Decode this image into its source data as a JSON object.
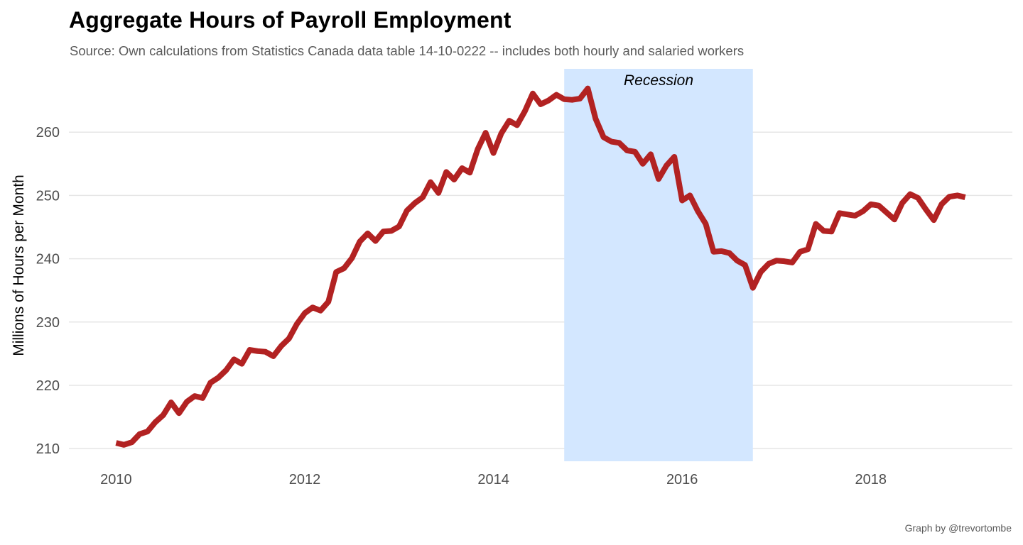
{
  "title": "Aggregate Hours of Payroll Employment",
  "subtitle": "Source: Own calculations from  Statistics Canada data table 14-10-0222 -- includes both hourly and salaried workers",
  "caption": "Graph by @trevortombe",
  "colors": {
    "line": "#b22222",
    "shade": "#d3e7ff",
    "grid": "#e6e6e6"
  },
  "chart_data": {
    "type": "line",
    "ylabel": "Millions of Hours per Month",
    "xlim": [
      2009.5,
      2019.5
    ],
    "ylim": [
      208,
      270
    ],
    "x_ticks": [
      2010,
      2012,
      2014,
      2016,
      2018
    ],
    "y_ticks": [
      210,
      220,
      230,
      240,
      250,
      260
    ],
    "grid": true,
    "shaded_regions": [
      {
        "label": "Recession",
        "start": 2014.75,
        "end": 2016.75
      }
    ],
    "series": [
      {
        "points": [
          [
            2010.0,
            210.9
          ],
          [
            2010.083,
            210.6
          ],
          [
            2010.167,
            211.0
          ],
          [
            2010.25,
            212.3
          ],
          [
            2010.333,
            212.7
          ],
          [
            2010.417,
            214.2
          ],
          [
            2010.5,
            215.3
          ],
          [
            2010.583,
            217.3
          ],
          [
            2010.667,
            215.6
          ],
          [
            2010.75,
            217.4
          ],
          [
            2010.833,
            218.3
          ],
          [
            2010.917,
            218.0
          ],
          [
            2011.0,
            220.4
          ],
          [
            2011.083,
            221.2
          ],
          [
            2011.167,
            222.4
          ],
          [
            2011.25,
            224.1
          ],
          [
            2011.333,
            223.4
          ],
          [
            2011.417,
            225.6
          ],
          [
            2011.5,
            225.4
          ],
          [
            2011.583,
            225.3
          ],
          [
            2011.667,
            224.6
          ],
          [
            2011.75,
            226.2
          ],
          [
            2011.833,
            227.4
          ],
          [
            2011.917,
            229.7
          ],
          [
            2012.0,
            231.4
          ],
          [
            2012.083,
            232.3
          ],
          [
            2012.167,
            231.8
          ],
          [
            2012.25,
            233.2
          ],
          [
            2012.333,
            237.9
          ],
          [
            2012.417,
            238.5
          ],
          [
            2012.5,
            240.1
          ],
          [
            2012.583,
            242.7
          ],
          [
            2012.667,
            244.0
          ],
          [
            2012.75,
            242.8
          ],
          [
            2012.833,
            244.3
          ],
          [
            2012.917,
            244.4
          ],
          [
            2013.0,
            245.1
          ],
          [
            2013.083,
            247.6
          ],
          [
            2013.167,
            248.8
          ],
          [
            2013.25,
            249.7
          ],
          [
            2013.333,
            252.1
          ],
          [
            2013.417,
            250.4
          ],
          [
            2013.5,
            253.7
          ],
          [
            2013.583,
            252.5
          ],
          [
            2013.667,
            254.3
          ],
          [
            2013.75,
            253.6
          ],
          [
            2013.833,
            257.3
          ],
          [
            2013.917,
            259.9
          ],
          [
            2014.0,
            256.7
          ],
          [
            2014.083,
            259.8
          ],
          [
            2014.167,
            261.8
          ],
          [
            2014.25,
            261.1
          ],
          [
            2014.333,
            263.3
          ],
          [
            2014.417,
            266.1
          ],
          [
            2014.5,
            264.4
          ],
          [
            2014.583,
            265.0
          ],
          [
            2014.667,
            265.9
          ],
          [
            2014.75,
            265.2
          ],
          [
            2014.833,
            265.1
          ],
          [
            2014.917,
            265.3
          ],
          [
            2015.0,
            266.9
          ],
          [
            2015.083,
            262.1
          ],
          [
            2015.167,
            259.2
          ],
          [
            2015.25,
            258.5
          ],
          [
            2015.333,
            258.3
          ],
          [
            2015.417,
            257.1
          ],
          [
            2015.5,
            256.9
          ],
          [
            2015.583,
            255.0
          ],
          [
            2015.667,
            256.5
          ],
          [
            2015.75,
            252.6
          ],
          [
            2015.833,
            254.7
          ],
          [
            2015.917,
            256.1
          ],
          [
            2016.0,
            249.2
          ],
          [
            2016.083,
            250.0
          ],
          [
            2016.167,
            247.5
          ],
          [
            2016.25,
            245.5
          ],
          [
            2016.333,
            241.1
          ],
          [
            2016.417,
            241.2
          ],
          [
            2016.5,
            240.9
          ],
          [
            2016.583,
            239.7
          ],
          [
            2016.667,
            239.0
          ],
          [
            2016.75,
            235.4
          ],
          [
            2016.833,
            237.9
          ],
          [
            2016.917,
            239.2
          ],
          [
            2017.0,
            239.7
          ],
          [
            2017.083,
            239.6
          ],
          [
            2017.167,
            239.4
          ],
          [
            2017.25,
            241.1
          ],
          [
            2017.333,
            241.5
          ],
          [
            2017.417,
            245.5
          ],
          [
            2017.5,
            244.4
          ],
          [
            2017.583,
            244.3
          ],
          [
            2017.667,
            247.2
          ],
          [
            2017.75,
            247.0
          ],
          [
            2017.833,
            246.8
          ],
          [
            2017.917,
            247.5
          ],
          [
            2018.0,
            248.6
          ],
          [
            2018.083,
            248.4
          ],
          [
            2018.167,
            247.3
          ],
          [
            2018.25,
            246.2
          ],
          [
            2018.333,
            248.8
          ],
          [
            2018.417,
            250.2
          ],
          [
            2018.5,
            249.6
          ],
          [
            2018.583,
            247.8
          ],
          [
            2018.667,
            246.1
          ],
          [
            2018.75,
            248.6
          ],
          [
            2018.833,
            249.8
          ],
          [
            2018.917,
            250.0
          ],
          [
            2019.0,
            249.7
          ]
        ]
      }
    ]
  }
}
